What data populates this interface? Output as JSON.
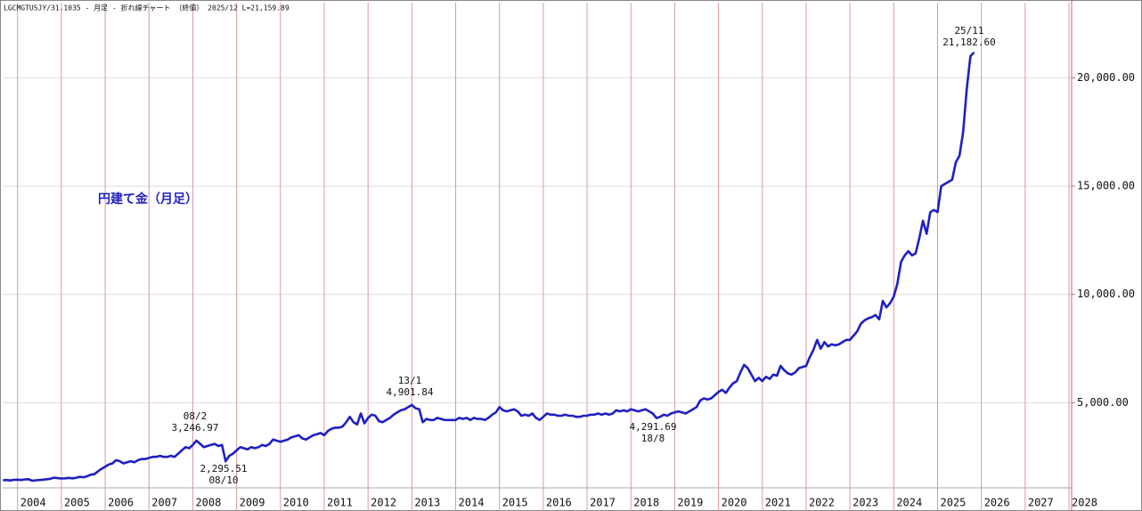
{
  "chart_data": {
    "type": "line",
    "header": "LGCMGTUSJY/31.1035 - 月足 - 折れ線チャート （終値） 2025/12 L=21,159.89",
    "title": "円建て金（月足）",
    "x": [
      2003.667,
      2003.75,
      2003.833,
      2003.917,
      2004,
      2004.083,
      2004.167,
      2004.25,
      2004.333,
      2004.417,
      2004.5,
      2004.583,
      2004.667,
      2004.75,
      2004.833,
      2004.917,
      2005,
      2005.083,
      2005.167,
      2005.25,
      2005.333,
      2005.417,
      2005.5,
      2005.583,
      2005.667,
      2005.75,
      2005.833,
      2005.917,
      2006,
      2006.083,
      2006.167,
      2006.25,
      2006.333,
      2006.417,
      2006.5,
      2006.583,
      2006.667,
      2006.75,
      2006.833,
      2006.917,
      2007,
      2007.083,
      2007.167,
      2007.25,
      2007.333,
      2007.417,
      2007.5,
      2007.583,
      2007.667,
      2007.75,
      2007.833,
      2007.917,
      2008,
      2008.083,
      2008.167,
      2008.25,
      2008.333,
      2008.417,
      2008.5,
      2008.583,
      2008.667,
      2008.75,
      2008.833,
      2008.917,
      2009,
      2009.083,
      2009.167,
      2009.25,
      2009.333,
      2009.417,
      2009.5,
      2009.583,
      2009.667,
      2009.75,
      2009.833,
      2009.917,
      2010,
      2010.083,
      2010.167,
      2010.25,
      2010.333,
      2010.417,
      2010.5,
      2010.583,
      2010.667,
      2010.75,
      2010.833,
      2010.917,
      2011,
      2011.083,
      2011.167,
      2011.25,
      2011.333,
      2011.417,
      2011.5,
      2011.583,
      2011.667,
      2011.75,
      2011.833,
      2011.917,
      2012,
      2012.083,
      2012.167,
      2012.25,
      2012.333,
      2012.417,
      2012.5,
      2012.583,
      2012.667,
      2012.75,
      2012.833,
      2012.917,
      2013,
      2013.083,
      2013.167,
      2013.25,
      2013.333,
      2013.417,
      2013.5,
      2013.583,
      2013.667,
      2013.75,
      2013.833,
      2013.917,
      2014,
      2014.083,
      2014.167,
      2014.25,
      2014.333,
      2014.417,
      2014.5,
      2014.583,
      2014.667,
      2014.75,
      2014.833,
      2014.917,
      2015,
      2015.083,
      2015.167,
      2015.25,
      2015.333,
      2015.417,
      2015.5,
      2015.583,
      2015.667,
      2015.75,
      2015.833,
      2015.917,
      2016,
      2016.083,
      2016.167,
      2016.25,
      2016.333,
      2016.417,
      2016.5,
      2016.583,
      2016.667,
      2016.75,
      2016.833,
      2016.917,
      2017,
      2017.083,
      2017.167,
      2017.25,
      2017.333,
      2017.417,
      2017.5,
      2017.583,
      2017.667,
      2017.75,
      2017.833,
      2017.917,
      2018,
      2018.083,
      2018.167,
      2018.25,
      2018.333,
      2018.417,
      2018.5,
      2018.583,
      2018.667,
      2018.75,
      2018.833,
      2018.917,
      2019,
      2019.083,
      2019.167,
      2019.25,
      2019.333,
      2019.417,
      2019.5,
      2019.583,
      2019.667,
      2019.75,
      2019.833,
      2019.917,
      2020,
      2020.083,
      2020.167,
      2020.25,
      2020.333,
      2020.417,
      2020.5,
      2020.583,
      2020.667,
      2020.75,
      2020.833,
      2020.917,
      2021,
      2021.083,
      2021.167,
      2021.25,
      2021.333,
      2021.417,
      2021.5,
      2021.583,
      2021.667,
      2021.75,
      2021.833,
      2021.917,
      2022,
      2022.083,
      2022.167,
      2022.25,
      2022.333,
      2022.417,
      2022.5,
      2022.583,
      2022.667,
      2022.75,
      2022.833,
      2022.917,
      2023,
      2023.083,
      2023.167,
      2023.25,
      2023.333,
      2023.417,
      2023.5,
      2023.583,
      2023.667,
      2023.75,
      2023.833,
      2023.917,
      2024,
      2024.083,
      2024.167,
      2024.25,
      2024.333,
      2024.417,
      2024.5,
      2024.583,
      2024.667,
      2024.75,
      2024.833,
      2024.917,
      2025,
      2025.083,
      2025.167,
      2025.25,
      2025.333,
      2025.417,
      2025.5,
      2025.583,
      2025.667,
      2025.75,
      2025.833
    ],
    "series": [
      {
        "color": "#1f1fc4",
        "values": [
          1420,
          1430,
          1410,
          1440,
          1450,
          1430,
          1460,
          1470,
          1400,
          1420,
          1430,
          1450,
          1470,
          1490,
          1540,
          1520,
          1500,
          1510,
          1530,
          1510,
          1530,
          1580,
          1560,
          1600,
          1680,
          1700,
          1830,
          1950,
          2050,
          2150,
          2200,
          2350,
          2300,
          2200,
          2250,
          2300,
          2250,
          2350,
          2400,
          2400,
          2450,
          2500,
          2500,
          2550,
          2500,
          2500,
          2550,
          2500,
          2650,
          2800,
          2950,
          2900,
          3050,
          3246.97,
          3100,
          2950,
          3000,
          3050,
          3100,
          3000,
          3050,
          2295.51,
          2550,
          2650,
          2800,
          2950,
          2900,
          2850,
          2950,
          2900,
          2950,
          3050,
          3000,
          3100,
          3300,
          3250,
          3200,
          3250,
          3300,
          3400,
          3450,
          3500,
          3350,
          3300,
          3400,
          3500,
          3550,
          3600,
          3500,
          3700,
          3800,
          3850,
          3850,
          3900,
          4100,
          4350,
          4100,
          4000,
          4500,
          4050,
          4300,
          4450,
          4400,
          4150,
          4100,
          4200,
          4300,
          4450,
          4550,
          4650,
          4700,
          4800,
          4901.84,
          4750,
          4700,
          4100,
          4250,
          4200,
          4200,
          4300,
          4250,
          4200,
          4200,
          4200,
          4200,
          4300,
          4250,
          4300,
          4200,
          4300,
          4250,
          4250,
          4200,
          4300,
          4450,
          4550,
          4800,
          4650,
          4600,
          4650,
          4700,
          4600,
          4400,
          4450,
          4400,
          4500,
          4300,
          4200,
          4350,
          4500,
          4450,
          4450,
          4400,
          4400,
          4450,
          4400,
          4400,
          4350,
          4350,
          4400,
          4400,
          4450,
          4450,
          4500,
          4450,
          4500,
          4450,
          4500,
          4650,
          4600,
          4650,
          4600,
          4700,
          4650,
          4600,
          4650,
          4700,
          4600,
          4500,
          4291.69,
          4350,
          4450,
          4400,
          4500,
          4550,
          4600,
          4550,
          4500,
          4600,
          4700,
          4800,
          5100,
          5200,
          5150,
          5200,
          5350,
          5500,
          5600,
          5450,
          5700,
          5900,
          6000,
          6400,
          6750,
          6600,
          6300,
          6000,
          6150,
          6000,
          6200,
          6100,
          6300,
          6250,
          6700,
          6500,
          6350,
          6300,
          6400,
          6600,
          6650,
          6700,
          7100,
          7450,
          7900,
          7500,
          7800,
          7600,
          7700,
          7650,
          7700,
          7800,
          7900,
          7900,
          8100,
          8300,
          8650,
          8800,
          8900,
          8950,
          9050,
          8850,
          9700,
          9400,
          9600,
          9900,
          10500,
          11500,
          11800,
          12000,
          11800,
          11900,
          12600,
          13400,
          12800,
          13800,
          13900,
          13800,
          15000,
          15100,
          15200,
          15300,
          16100,
          16400,
          17500,
          19500,
          21000,
          21182.6
        ]
      }
    ],
    "xlim": [
      2003.66,
      2028.06
    ],
    "xticks": [
      2004,
      2005,
      2006,
      2007,
      2008,
      2009,
      2010,
      2011,
      2012,
      2013,
      2014,
      2015,
      2016,
      2017,
      2018,
      2019,
      2020,
      2021,
      2022,
      2023,
      2024,
      2025,
      2026,
      2027,
      2028
    ],
    "ylim": [
      1070,
      23470
    ],
    "yticks": [
      {
        "value": 5000,
        "label": "5,000.00"
      },
      {
        "value": 10000,
        "label": "10,000.00"
      },
      {
        "value": 15000,
        "label": "15,000.00"
      },
      {
        "value": 20000,
        "label": "20,000.00"
      }
    ],
    "grid": true,
    "annotations": [
      {
        "date": "08/2",
        "value_label": "3,246.97"
      },
      {
        "date": "08/10",
        "value_label": "2,295.51"
      },
      {
        "date": "13/1",
        "value_label": "4,901.84"
      },
      {
        "date": "18/8",
        "value_label": "4,291.69"
      },
      {
        "date": "25/11",
        "value_label": "21,182.60"
      }
    ]
  }
}
